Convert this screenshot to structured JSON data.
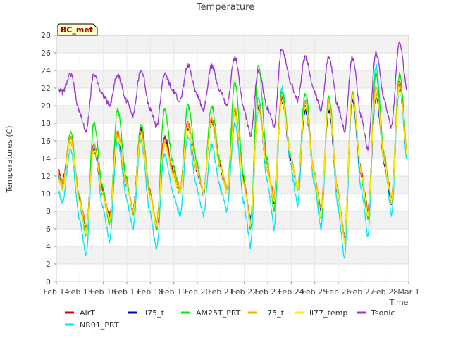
{
  "chart_data": {
    "type": "line",
    "title": "Temperature",
    "station_label": "BC_met",
    "xlabel": "Time",
    "ylabel": "Temperatures (C)",
    "x_ticks": [
      "Feb 14",
      "Feb 15",
      "Feb 16",
      "Feb 17",
      "Feb 18",
      "Feb 19",
      "Feb 20",
      "Feb 21",
      "Feb 22",
      "Feb 23",
      "Feb 24",
      "Feb 25",
      "Feb 26",
      "Feb 27",
      "Feb 28",
      "Mar 1"
    ],
    "y_ticks": [
      "0",
      "2",
      "4",
      "6",
      "8",
      "10",
      "12",
      "14",
      "16",
      "18",
      "20",
      "22",
      "24",
      "26",
      "28"
    ],
    "ylim": [
      0,
      28
    ],
    "xlim": [
      "Feb 14",
      "Mar 1"
    ],
    "grid": true,
    "legend_position": "bottom",
    "series": [
      {
        "name": "AirT",
        "color": "#dd0000",
        "lows": [
          11.5,
          6,
          7.5,
          8,
          6.5,
          10.5,
          10,
          10.5,
          7,
          9.5,
          10.5,
          8,
          5,
          8,
          9.5
        ],
        "highs": [
          16.5,
          15.5,
          17,
          17.5,
          16.5,
          18,
          18.5,
          19.5,
          20,
          21,
          20,
          20,
          21,
          21.5,
          22.5
        ]
      },
      {
        "name": "NR01_PRT",
        "color": "#00e5ee",
        "lows": [
          9,
          3,
          4.5,
          6,
          3.5,
          7.5,
          7.5,
          8,
          4,
          6,
          8.5,
          6,
          2.5,
          5,
          7.5
        ],
        "highs": [
          15,
          15.5,
          16,
          16,
          14.5,
          16.5,
          15.5,
          18,
          21,
          22,
          20.5,
          20,
          21,
          24.5,
          22
        ]
      },
      {
        "name": "li75_t",
        "color": "#0000bb",
        "lows": [
          11,
          6,
          7,
          8,
          6,
          10,
          10,
          10,
          7,
          9,
          10.5,
          8,
          5,
          7.5,
          9
        ],
        "highs": [
          16,
          15,
          16.5,
          17,
          16,
          17.5,
          18,
          19,
          19.5,
          20.5,
          19.5,
          19.5,
          20.5,
          21,
          22
        ]
      },
      {
        "name": "AM25T_PRT",
        "color": "#00ee00",
        "lows": [
          10.5,
          5,
          6.5,
          7.5,
          6,
          10,
          10,
          10,
          6,
          8,
          10.5,
          7,
          4.5,
          7,
          9
        ],
        "highs": [
          17,
          18,
          19.5,
          18,
          19.5,
          20,
          20,
          22.5,
          24.5,
          21.5,
          21.5,
          21,
          21.5,
          23.5,
          23.5
        ]
      },
      {
        "name": "li75_t",
        "color": "#ffa500",
        "lows": [
          11,
          6,
          7,
          8,
          6.5,
          10.5,
          10,
          10.5,
          7,
          9.5,
          10.5,
          8,
          5,
          7.5,
          9.5
        ],
        "highs": [
          16.5,
          15.5,
          17,
          17,
          16,
          18,
          18.5,
          19.5,
          20,
          21,
          20.5,
          20.5,
          21.5,
          22,
          22.5
        ]
      },
      {
        "name": "li77_temp",
        "color": "#ffee00",
        "lows": [
          10.5,
          5.5,
          7,
          8,
          6,
          10,
          10,
          10,
          6.5,
          9,
          10.5,
          7.5,
          4.5,
          7.5,
          9
        ],
        "highs": [
          16,
          15,
          16.5,
          16.5,
          15.5,
          17.5,
          18,
          19,
          19.5,
          20.5,
          20,
          20,
          21,
          21.5,
          22
        ]
      },
      {
        "name": "Tsonic",
        "color": "#9933cc",
        "lows": [
          21.5,
          17,
          20,
          19,
          17.5,
          20.5,
          19.5,
          20,
          16.5,
          17.5,
          20.5,
          19.5,
          17,
          15,
          17.5
        ],
        "highs": [
          23.5,
          23.5,
          23.5,
          24,
          23.5,
          24.5,
          24.5,
          25.5,
          24,
          26.5,
          25.5,
          25.5,
          25.5,
          26,
          27
        ]
      }
    ]
  }
}
